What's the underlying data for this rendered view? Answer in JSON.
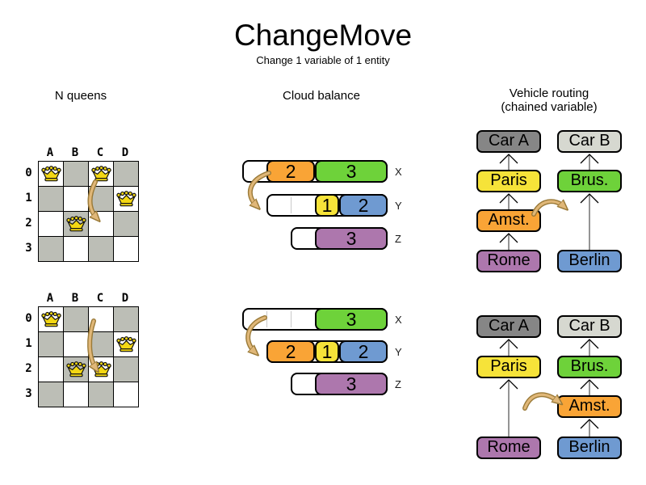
{
  "title": "ChangeMove",
  "subtitle": "Change 1 variable of 1 entity",
  "colors": {
    "orange": "#f9a436",
    "green": "#6ed23a",
    "yellow": "#f6e339",
    "blue": "#6f9ad1",
    "purple": "#ad77ad",
    "darkgray": "#868686",
    "lightgray": "#d6d8d0",
    "board_gray": "#bcbeb6",
    "crown_gold": "#f3d713",
    "arrow_tan": "#e0b778",
    "arrow_tan_dark": "#9a7a38"
  },
  "nqueens": {
    "label": "N queens",
    "col_labels": [
      "A",
      "B",
      "C",
      "D"
    ],
    "row_labels": [
      "0",
      "1",
      "2",
      "3"
    ],
    "states": [
      {
        "name": "before",
        "queens": [
          "A0",
          "C0",
          "D1",
          "B2"
        ]
      },
      {
        "name": "after",
        "queens": [
          "A0",
          "D1",
          "B2",
          "C2"
        ]
      }
    ]
  },
  "cloud": {
    "label": "Cloud balance",
    "states": [
      {
        "name": "before",
        "bars": [
          {
            "label": "X",
            "capacity": 6,
            "blocks": [
              {
                "value": "2",
                "color": "orange",
                "units": 2
              },
              {
                "value": "3",
                "color": "green",
                "units": 3
              }
            ]
          },
          {
            "label": "Y",
            "capacity": 5,
            "blocks": [
              {
                "value": "1",
                "color": "yellow",
                "units": 1
              },
              {
                "value": "2",
                "color": "blue",
                "units": 2
              }
            ]
          },
          {
            "label": "Z",
            "capacity": 4,
            "blocks": [
              {
                "value": "3",
                "color": "purple",
                "units": 3
              }
            ]
          }
        ]
      },
      {
        "name": "after",
        "bars": [
          {
            "label": "X",
            "capacity": 6,
            "blocks": [
              {
                "value": "3",
                "color": "green",
                "units": 3
              }
            ]
          },
          {
            "label": "Y",
            "capacity": 5,
            "blocks": [
              {
                "value": "2",
                "color": "orange",
                "units": 2
              },
              {
                "value": "1",
                "color": "yellow",
                "units": 1
              },
              {
                "value": "2",
                "color": "blue",
                "units": 2
              }
            ]
          },
          {
            "label": "Z",
            "capacity": 4,
            "blocks": [
              {
                "value": "3",
                "color": "purple",
                "units": 3
              }
            ]
          }
        ]
      }
    ]
  },
  "vehicle": {
    "label": "Vehicle routing",
    "sublabel": "(chained variable)",
    "states": [
      {
        "name": "before",
        "columns": [
          {
            "boxes": [
              {
                "label": "Car A",
                "color": "darkgray",
                "row": 0
              },
              {
                "label": "Paris",
                "color": "yellow",
                "row": 1
              },
              {
                "label": "Amst.",
                "color": "orange",
                "row": 2
              },
              {
                "label": "Rome",
                "color": "purple",
                "row": 3
              }
            ]
          },
          {
            "boxes": [
              {
                "label": "Car B",
                "color": "lightgray",
                "row": 0
              },
              {
                "label": "Brus.",
                "color": "green",
                "row": 1
              },
              {
                "label": "Berlin",
                "color": "blue",
                "row": 3
              }
            ]
          }
        ]
      },
      {
        "name": "after",
        "columns": [
          {
            "boxes": [
              {
                "label": "Car A",
                "color": "darkgray",
                "row": 0
              },
              {
                "label": "Paris",
                "color": "yellow",
                "row": 1
              },
              {
                "label": "Rome",
                "color": "purple",
                "row": 3
              }
            ]
          },
          {
            "boxes": [
              {
                "label": "Car B",
                "color": "lightgray",
                "row": 0
              },
              {
                "label": "Brus.",
                "color": "green",
                "row": 1
              },
              {
                "label": "Amst.",
                "color": "orange",
                "row": 2
              },
              {
                "label": "Berlin",
                "color": "blue",
                "row": 3
              }
            ]
          }
        ]
      }
    ]
  }
}
